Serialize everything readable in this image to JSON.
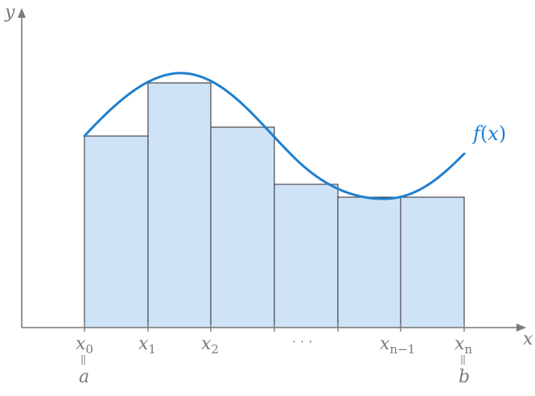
{
  "axes": {
    "x_label": "x",
    "y_label": "y",
    "color": "#7a7a7a"
  },
  "function_label": {
    "name": "f",
    "open": "(",
    "arg": "x",
    "close": ")",
    "color": "#1e7fd0"
  },
  "partition": [
    {
      "base": "x",
      "sub": "0",
      "below": "a"
    },
    {
      "base": "x",
      "sub": "1"
    },
    {
      "base": "x",
      "sub": "2"
    },
    {
      "dots": "· · ·"
    },
    {
      "base": "x",
      "sub": "n−1"
    },
    {
      "base": "x",
      "sub": "n",
      "below": "b"
    }
  ],
  "equals_mark": "||",
  "rectangle_fill": "#cfe3f7",
  "rectangle_count": 6
}
